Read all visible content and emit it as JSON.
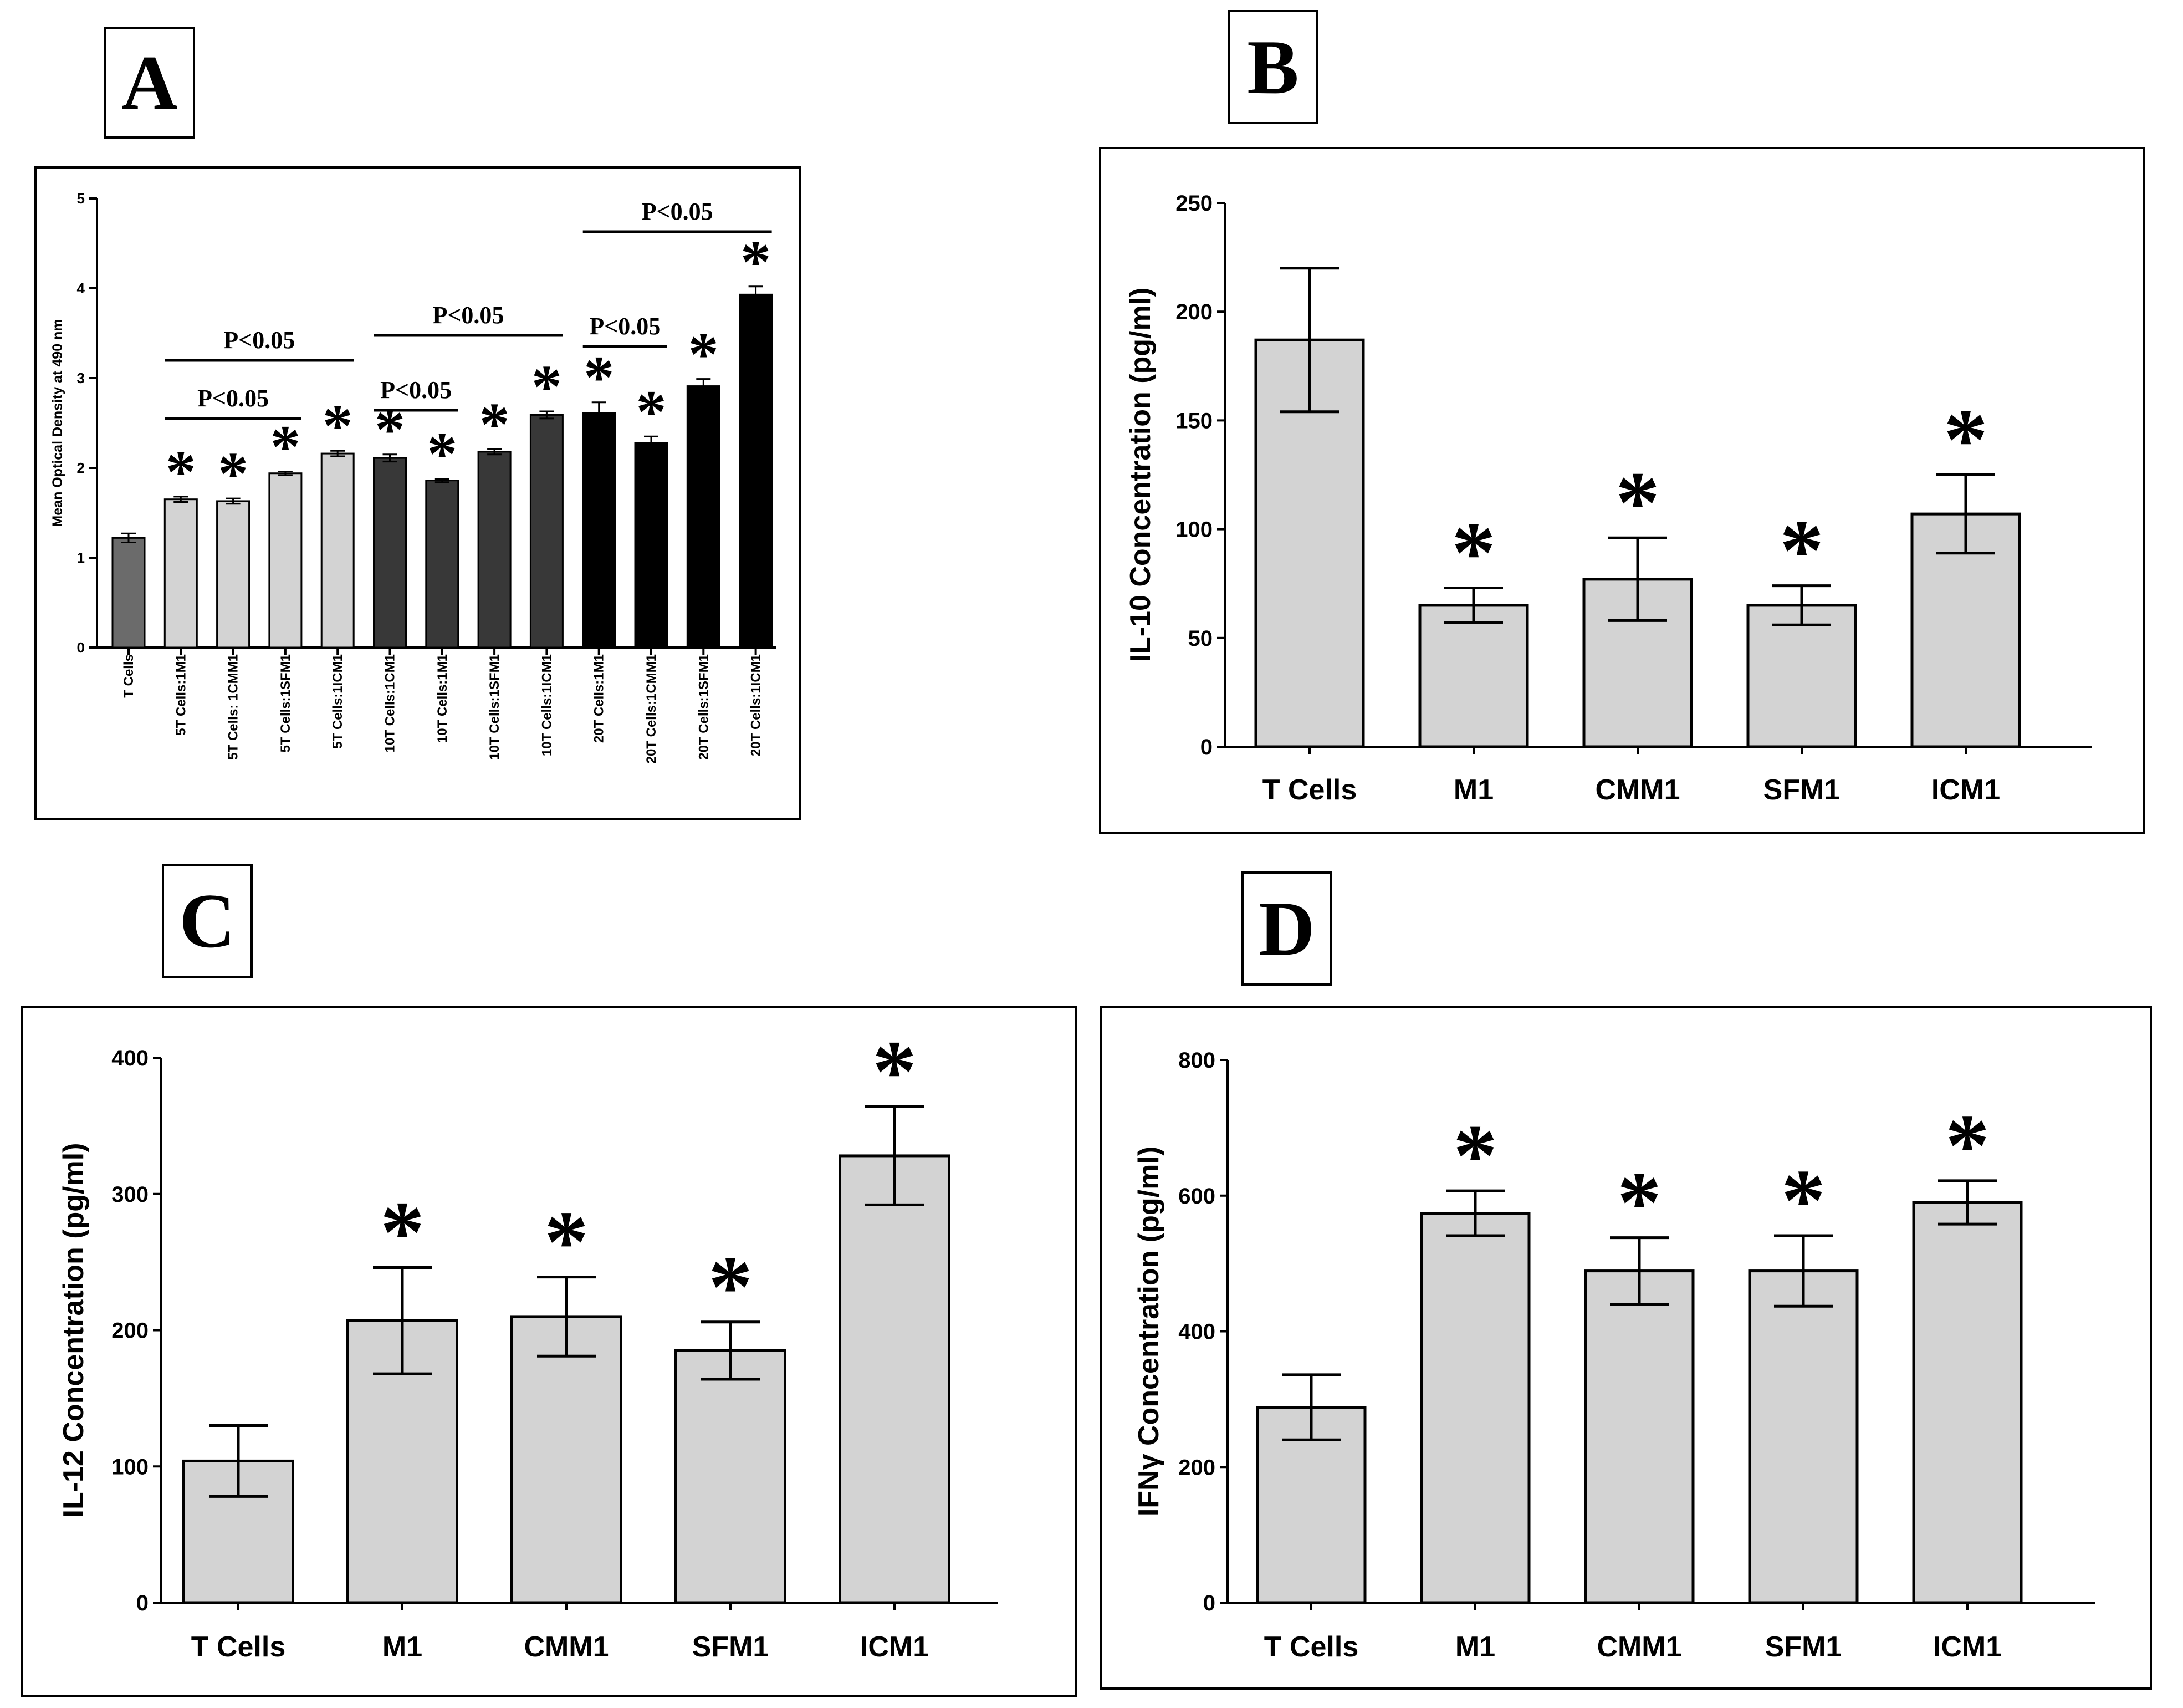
{
  "panels": {
    "A": {
      "letter": "A"
    },
    "B": {
      "letter": "B"
    },
    "C": {
      "letter": "C"
    },
    "D": {
      "letter": "D"
    }
  },
  "colors": {
    "background": "#ffffff",
    "bar_gray": "#d3d3d3",
    "axis": "#000000"
  },
  "chart_data": [
    {
      "panel": "A",
      "type": "bar",
      "ylabel": "Mean Optical Density at 490 nm",
      "ylim": [
        0,
        5
      ],
      "yticks": [
        0,
        1,
        2,
        3,
        4,
        5
      ],
      "categories": [
        "T Cells",
        "5T Cells:1M1",
        "5T Cells: 1CMM1",
        "5T Cells:1SFM1",
        "5T Cells:1ICM1",
        "10T Cells:1CM1",
        "10T Cells:1M1",
        "10T Cells:1SFM1",
        "10T Cells:1ICM1",
        "20T Cells:1M1",
        "20T Cells:1CMM1",
        "20T Cells:1SFM1",
        "20T Cells:1ICM1"
      ],
      "values": [
        1.22,
        1.65,
        1.63,
        1.94,
        2.16,
        2.11,
        1.86,
        2.18,
        2.59,
        2.61,
        2.28,
        2.91,
        3.93
      ],
      "errors": [
        0.05,
        0.03,
        0.03,
        0.02,
        0.03,
        0.04,
        0.02,
        0.03,
        0.04,
        0.12,
        0.07,
        0.08,
        0.09
      ],
      "bar_fills": [
        "#6b6b6b",
        "#d3d3d3",
        "#d3d3d3",
        "#d3d3d3",
        "#d3d3d3",
        "#383838",
        "#383838",
        "#383838",
        "#383838",
        "#000000",
        "#000000",
        "#000000",
        "#000000"
      ],
      "significant": [
        false,
        true,
        true,
        true,
        true,
        true,
        true,
        true,
        true,
        true,
        true,
        true,
        true
      ],
      "significance_marker": "*",
      "brackets": [
        {
          "label": "P<0.05",
          "from": 1,
          "to": 4
        },
        {
          "label": "P<0.05",
          "from": 1,
          "to": 3
        },
        {
          "label": "P<0.05",
          "from": 5,
          "to": 8
        },
        {
          "label": "P<0.05",
          "from": 5,
          "to": 6
        },
        {
          "label": "P<0.05",
          "from": 9,
          "to": 10
        },
        {
          "label": "P<0.05",
          "from": 9,
          "to": 12
        }
      ]
    },
    {
      "panel": "B",
      "type": "bar",
      "ylabel": "IL-10 Concentration (pg/ml)",
      "ylim": [
        0,
        250
      ],
      "yticks": [
        0,
        50,
        100,
        150,
        200,
        250
      ],
      "categories": [
        "T Cells",
        "M1",
        "CMM1",
        "SFM1",
        "ICM1"
      ],
      "values": [
        187,
        65,
        77,
        65,
        107
      ],
      "errors": [
        33,
        8,
        19,
        9,
        18
      ],
      "significant": [
        false,
        true,
        true,
        true,
        true
      ],
      "significance_marker": "*"
    },
    {
      "panel": "C",
      "type": "bar",
      "ylabel": "IL-12 Concentration (pg/ml)",
      "ylim": [
        0,
        400
      ],
      "yticks": [
        0,
        100,
        200,
        300,
        400
      ],
      "categories": [
        "T Cells",
        "M1",
        "CMM1",
        "SFM1",
        "ICM1"
      ],
      "values": [
        104,
        207,
        210,
        185,
        328
      ],
      "errors": [
        26,
        39,
        29,
        21,
        36
      ],
      "significant": [
        false,
        true,
        true,
        true,
        true
      ],
      "significance_marker": "*"
    },
    {
      "panel": "D",
      "type": "bar",
      "ylabel": "IFNγ Concentration (pg/ml)",
      "ylim": [
        0,
        800
      ],
      "yticks": [
        0,
        200,
        400,
        600,
        800
      ],
      "categories": [
        "T Cells",
        "M1",
        "CMM1",
        "SFM1",
        "ICM1"
      ],
      "values": [
        288,
        574,
        489,
        489,
        590
      ],
      "errors": [
        48,
        33,
        49,
        52,
        32
      ],
      "significant": [
        false,
        true,
        true,
        true,
        true
      ],
      "significance_marker": "*"
    }
  ]
}
